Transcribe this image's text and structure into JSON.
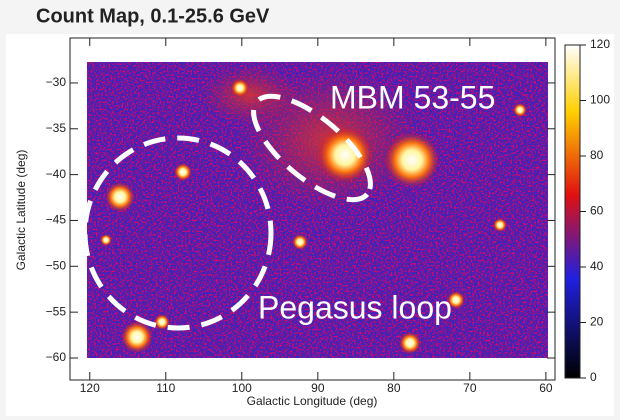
{
  "chart_data": {
    "type": "heatmap",
    "title": "Count Map, 0.1-25.6 GeV",
    "x_label": "Galactic Longitude (deg)",
    "y_label": "Galactic Latitude (deg)",
    "xlim": [
      122.6,
      58.8
    ],
    "xticks": [
      120,
      110,
      100,
      90,
      80,
      70,
      60
    ],
    "ylim": [
      -62.4,
      -25.1
    ],
    "yticks": [
      {
        "value": -30,
        "label": "−30"
      },
      {
        "value": -35,
        "label": "−35"
      },
      {
        "value": -40,
        "label": "−40"
      },
      {
        "value": -45,
        "label": "−45"
      },
      {
        "value": -50,
        "label": "−50"
      },
      {
        "value": -55,
        "label": "−55"
      },
      {
        "value": -60,
        "label": "−60"
      }
    ],
    "clim": [
      0,
      120
    ],
    "cticks": [
      0,
      20,
      40,
      60,
      80,
      100,
      120
    ],
    "annotations": [
      "MBM 53-55",
      "Pegasus loop"
    ]
  }
}
